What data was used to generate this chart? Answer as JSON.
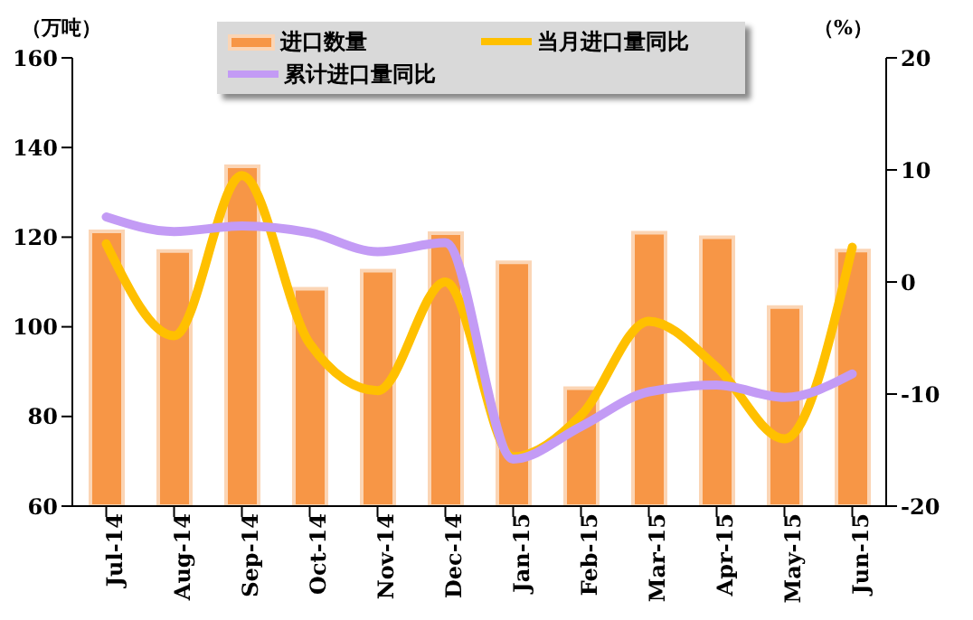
{
  "chart_data": {
    "type": "bar",
    "ylabel": "（万吨）",
    "y2label": "（%）",
    "categories": [
      "Jul-14",
      "Aug-14",
      "Sep-14",
      "Oct-14",
      "Nov-14",
      "Dec-14",
      "Jan-15",
      "Feb-15",
      "Mar-15",
      "Apr-15",
      "May-15",
      "Jun-15"
    ],
    "series": [
      {
        "name": "进口数量",
        "color": "#f79646",
        "values": [
          121.3,
          116.9,
          135.8,
          108.5,
          112.5,
          120.9,
          114.4,
          86.3,
          121,
          120,
          104.4,
          117
        ]
      },
      {
        "name": "当月进口量同比",
        "type": "line",
        "axis": "y2",
        "color": "#ffc000",
        "values": [
          3.4,
          -4.8,
          9.5,
          -5.5,
          -9.7,
          0,
          -15.6,
          -11.9,
          -3.5,
          -7.6,
          -14,
          3.1
        ]
      },
      {
        "name": "累计进口量同比",
        "type": "line",
        "axis": "y2",
        "color": "#c39bf5",
        "values": [
          5.8,
          4.5,
          5,
          4.4,
          2.7,
          3.5,
          -15.8,
          -12.9,
          -9.8,
          -9.2,
          -10.3,
          -8.2
        ]
      }
    ],
    "ylim": [
      60,
      160
    ],
    "yticks": [
      60,
      80,
      100,
      120,
      140,
      160
    ],
    "y2lim": [
      -20,
      20
    ],
    "y2ticks": [
      -20,
      -10,
      0,
      10,
      20
    ],
    "legend": "top",
    "grid": false,
    "marker": "none"
  }
}
